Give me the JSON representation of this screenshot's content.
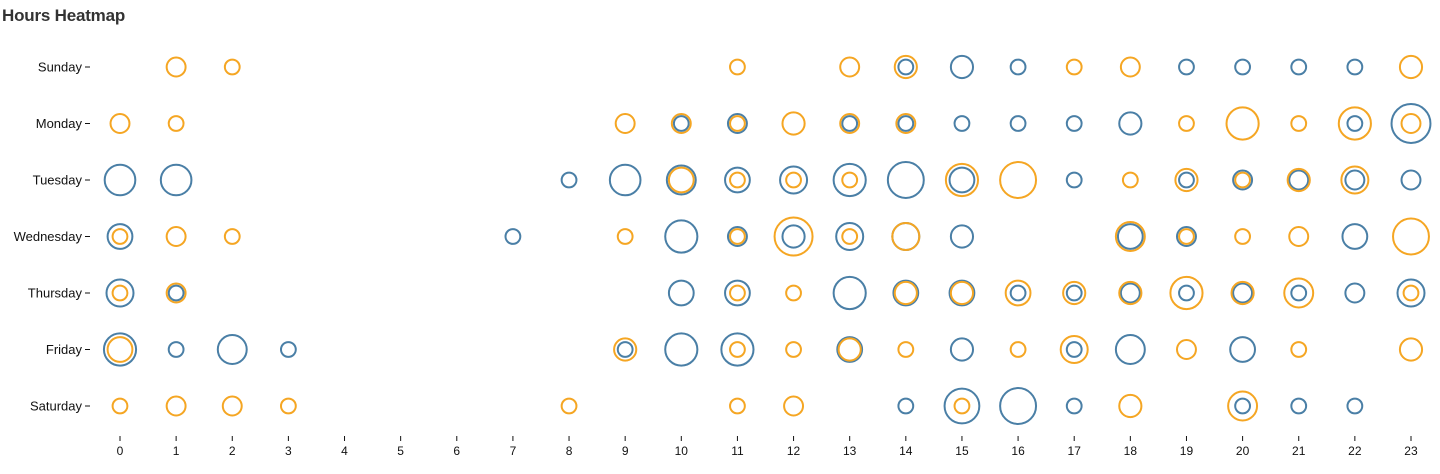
{
  "chart_data": {
    "type": "scatter",
    "title": "Hours Heatmap",
    "xlabel": "",
    "ylabel": "",
    "x_ticks": [
      "0",
      "1",
      "2",
      "3",
      "4",
      "5",
      "6",
      "7",
      "8",
      "9",
      "10",
      "11",
      "12",
      "13",
      "14",
      "15",
      "16",
      "17",
      "18",
      "19",
      "20",
      "21",
      "22",
      "23"
    ],
    "days": [
      "Sunday",
      "Monday",
      "Tuesday",
      "Wednesday",
      "Thursday",
      "Friday",
      "Saturday"
    ],
    "size_encoding": "circle radius proportional to count",
    "series": [
      {
        "name": "blue",
        "color": "#4a7fa6",
        "points": [
          {
            "day": "Sunday",
            "hour": 14,
            "value": 2
          },
          {
            "day": "Sunday",
            "hour": 15,
            "value": 4
          },
          {
            "day": "Sunday",
            "hour": 16,
            "value": 2
          },
          {
            "day": "Sunday",
            "hour": 19,
            "value": 2
          },
          {
            "day": "Sunday",
            "hour": 20,
            "value": 2
          },
          {
            "day": "Sunday",
            "hour": 21,
            "value": 2
          },
          {
            "day": "Sunday",
            "hour": 22,
            "value": 2
          },
          {
            "day": "Monday",
            "hour": 10,
            "value": 2
          },
          {
            "day": "Monday",
            "hour": 11,
            "value": 3
          },
          {
            "day": "Monday",
            "hour": 13,
            "value": 2
          },
          {
            "day": "Monday",
            "hour": 14,
            "value": 2
          },
          {
            "day": "Monday",
            "hour": 15,
            "value": 2
          },
          {
            "day": "Monday",
            "hour": 16,
            "value": 2
          },
          {
            "day": "Monday",
            "hour": 17,
            "value": 2
          },
          {
            "day": "Monday",
            "hour": 18,
            "value": 4
          },
          {
            "day": "Monday",
            "hour": 22,
            "value": 2
          },
          {
            "day": "Monday",
            "hour": 23,
            "value": 15
          },
          {
            "day": "Tuesday",
            "hour": 0,
            "value": 8
          },
          {
            "day": "Tuesday",
            "hour": 1,
            "value": 8
          },
          {
            "day": "Tuesday",
            "hour": 8,
            "value": 2
          },
          {
            "day": "Tuesday",
            "hour": 9,
            "value": 8
          },
          {
            "day": "Tuesday",
            "hour": 10,
            "value": 7
          },
          {
            "day": "Tuesday",
            "hour": 11,
            "value": 5
          },
          {
            "day": "Tuesday",
            "hour": 12,
            "value": 6
          },
          {
            "day": "Tuesday",
            "hour": 13,
            "value": 9
          },
          {
            "day": "Tuesday",
            "hour": 14,
            "value": 12
          },
          {
            "day": "Tuesday",
            "hour": 15,
            "value": 5
          },
          {
            "day": "Tuesday",
            "hour": 17,
            "value": 2
          },
          {
            "day": "Tuesday",
            "hour": 19,
            "value": 2
          },
          {
            "day": "Tuesday",
            "hour": 20,
            "value": 3
          },
          {
            "day": "Tuesday",
            "hour": 21,
            "value": 3
          },
          {
            "day": "Tuesday",
            "hour": 22,
            "value": 3
          },
          {
            "day": "Tuesday",
            "hour": 23,
            "value": 3
          },
          {
            "day": "Wednesday",
            "hour": 0,
            "value": 5
          },
          {
            "day": "Wednesday",
            "hour": 7,
            "value": 2
          },
          {
            "day": "Wednesday",
            "hour": 10,
            "value": 9
          },
          {
            "day": "Wednesday",
            "hour": 11,
            "value": 3
          },
          {
            "day": "Wednesday",
            "hour": 12,
            "value": 4
          },
          {
            "day": "Wednesday",
            "hour": 13,
            "value": 6
          },
          {
            "day": "Wednesday",
            "hour": 14,
            "value": 6
          },
          {
            "day": "Wednesday",
            "hour": 15,
            "value": 4
          },
          {
            "day": "Wednesday",
            "hour": 18,
            "value": 5
          },
          {
            "day": "Wednesday",
            "hour": 19,
            "value": 3
          },
          {
            "day": "Wednesday",
            "hour": 22,
            "value": 5
          },
          {
            "day": "Thursday",
            "hour": 0,
            "value": 6
          },
          {
            "day": "Thursday",
            "hour": 1,
            "value": 2
          },
          {
            "day": "Thursday",
            "hour": 10,
            "value": 5
          },
          {
            "day": "Thursday",
            "hour": 11,
            "value": 5
          },
          {
            "day": "Thursday",
            "hour": 13,
            "value": 9
          },
          {
            "day": "Thursday",
            "hour": 14,
            "value": 5
          },
          {
            "day": "Thursday",
            "hour": 15,
            "value": 5
          },
          {
            "day": "Thursday",
            "hour": 16,
            "value": 2
          },
          {
            "day": "Thursday",
            "hour": 17,
            "value": 2
          },
          {
            "day": "Thursday",
            "hour": 18,
            "value": 3
          },
          {
            "day": "Thursday",
            "hour": 19,
            "value": 2
          },
          {
            "day": "Thursday",
            "hour": 20,
            "value": 3
          },
          {
            "day": "Thursday",
            "hour": 21,
            "value": 2
          },
          {
            "day": "Thursday",
            "hour": 22,
            "value": 3
          },
          {
            "day": "Thursday",
            "hour": 23,
            "value": 6
          },
          {
            "day": "Friday",
            "hour": 0,
            "value": 9
          },
          {
            "day": "Friday",
            "hour": 1,
            "value": 2
          },
          {
            "day": "Friday",
            "hour": 2,
            "value": 7
          },
          {
            "day": "Friday",
            "hour": 3,
            "value": 2
          },
          {
            "day": "Friday",
            "hour": 9,
            "value": 2
          },
          {
            "day": "Friday",
            "hour": 10,
            "value": 9
          },
          {
            "day": "Friday",
            "hour": 11,
            "value": 9
          },
          {
            "day": "Friday",
            "hour": 13,
            "value": 5
          },
          {
            "day": "Friday",
            "hour": 15,
            "value": 4
          },
          {
            "day": "Friday",
            "hour": 17,
            "value": 2
          },
          {
            "day": "Friday",
            "hour": 18,
            "value": 7
          },
          {
            "day": "Friday",
            "hour": 20,
            "value": 5
          },
          {
            "day": "Saturday",
            "hour": 14,
            "value": 2
          },
          {
            "day": "Saturday",
            "hour": 15,
            "value": 11
          },
          {
            "day": "Saturday",
            "hour": 16,
            "value": 12
          },
          {
            "day": "Saturday",
            "hour": 17,
            "value": 2
          },
          {
            "day": "Saturday",
            "hour": 20,
            "value": 2
          },
          {
            "day": "Saturday",
            "hour": 21,
            "value": 2
          },
          {
            "day": "Saturday",
            "hour": 22,
            "value": 2
          }
        ]
      },
      {
        "name": "orange",
        "color": "#f5a623",
        "points": [
          {
            "day": "Sunday",
            "hour": 1,
            "value": 3
          },
          {
            "day": "Sunday",
            "hour": 2,
            "value": 2
          },
          {
            "day": "Sunday",
            "hour": 11,
            "value": 2
          },
          {
            "day": "Sunday",
            "hour": 13,
            "value": 3
          },
          {
            "day": "Sunday",
            "hour": 14,
            "value": 4
          },
          {
            "day": "Sunday",
            "hour": 17,
            "value": 2
          },
          {
            "day": "Sunday",
            "hour": 18,
            "value": 3
          },
          {
            "day": "Sunday",
            "hour": 23,
            "value": 4
          },
          {
            "day": "Monday",
            "hour": 0,
            "value": 3
          },
          {
            "day": "Monday",
            "hour": 1,
            "value": 2
          },
          {
            "day": "Monday",
            "hour": 9,
            "value": 3
          },
          {
            "day": "Monday",
            "hour": 10,
            "value": 3
          },
          {
            "day": "Monday",
            "hour": 11,
            "value": 2
          },
          {
            "day": "Monday",
            "hour": 12,
            "value": 4
          },
          {
            "day": "Monday",
            "hour": 13,
            "value": 3
          },
          {
            "day": "Monday",
            "hour": 14,
            "value": 3
          },
          {
            "day": "Monday",
            "hour": 19,
            "value": 2
          },
          {
            "day": "Monday",
            "hour": 20,
            "value": 9
          },
          {
            "day": "Monday",
            "hour": 21,
            "value": 2
          },
          {
            "day": "Monday",
            "hour": 22,
            "value": 9
          },
          {
            "day": "Monday",
            "hour": 23,
            "value": 3
          },
          {
            "day": "Tuesday",
            "hour": 10,
            "value": 5
          },
          {
            "day": "Tuesday",
            "hour": 11,
            "value": 2
          },
          {
            "day": "Tuesday",
            "hour": 12,
            "value": 2
          },
          {
            "day": "Tuesday",
            "hour": 13,
            "value": 2
          },
          {
            "day": "Tuesday",
            "hour": 15,
            "value": 9
          },
          {
            "day": "Tuesday",
            "hour": 16,
            "value": 12
          },
          {
            "day": "Tuesday",
            "hour": 18,
            "value": 2
          },
          {
            "day": "Tuesday",
            "hour": 19,
            "value": 4
          },
          {
            "day": "Tuesday",
            "hour": 20,
            "value": 2
          },
          {
            "day": "Tuesday",
            "hour": 21,
            "value": 4
          },
          {
            "day": "Tuesday",
            "hour": 22,
            "value": 6
          },
          {
            "day": "Wednesday",
            "hour": 0,
            "value": 2
          },
          {
            "day": "Wednesday",
            "hour": 1,
            "value": 3
          },
          {
            "day": "Wednesday",
            "hour": 2,
            "value": 2
          },
          {
            "day": "Wednesday",
            "hour": 9,
            "value": 2
          },
          {
            "day": "Wednesday",
            "hour": 11,
            "value": 2
          },
          {
            "day": "Wednesday",
            "hour": 12,
            "value": 14
          },
          {
            "day": "Wednesday",
            "hour": 13,
            "value": 2
          },
          {
            "day": "Wednesday",
            "hour": 14,
            "value": 6
          },
          {
            "day": "Wednesday",
            "hour": 18,
            "value": 7
          },
          {
            "day": "Wednesday",
            "hour": 19,
            "value": 2
          },
          {
            "day": "Wednesday",
            "hour": 20,
            "value": 2
          },
          {
            "day": "Wednesday",
            "hour": 21,
            "value": 3
          },
          {
            "day": "Wednesday",
            "hour": 23,
            "value": 12
          },
          {
            "day": "Thursday",
            "hour": 0,
            "value": 2
          },
          {
            "day": "Thursday",
            "hour": 1,
            "value": 3
          },
          {
            "day": "Thursday",
            "hour": 11,
            "value": 2
          },
          {
            "day": "Thursday",
            "hour": 12,
            "value": 2
          },
          {
            "day": "Thursday",
            "hour": 14,
            "value": 4
          },
          {
            "day": "Thursday",
            "hour": 15,
            "value": 4
          },
          {
            "day": "Thursday",
            "hour": 16,
            "value": 5
          },
          {
            "day": "Thursday",
            "hour": 17,
            "value": 4
          },
          {
            "day": "Thursday",
            "hour": 18,
            "value": 4
          },
          {
            "day": "Thursday",
            "hour": 19,
            "value": 9
          },
          {
            "day": "Thursday",
            "hour": 20,
            "value": 4
          },
          {
            "day": "Thursday",
            "hour": 21,
            "value": 7
          },
          {
            "day": "Thursday",
            "hour": 23,
            "value": 2
          },
          {
            "day": "Friday",
            "hour": 0,
            "value": 5
          },
          {
            "day": "Friday",
            "hour": 9,
            "value": 4
          },
          {
            "day": "Friday",
            "hour": 11,
            "value": 2
          },
          {
            "day": "Friday",
            "hour": 12,
            "value": 2
          },
          {
            "day": "Friday",
            "hour": 13,
            "value": 4
          },
          {
            "day": "Friday",
            "hour": 14,
            "value": 2
          },
          {
            "day": "Friday",
            "hour": 16,
            "value": 2
          },
          {
            "day": "Friday",
            "hour": 17,
            "value": 6
          },
          {
            "day": "Friday",
            "hour": 19,
            "value": 3
          },
          {
            "day": "Friday",
            "hour": 21,
            "value": 2
          },
          {
            "day": "Friday",
            "hour": 23,
            "value": 4
          },
          {
            "day": "Saturday",
            "hour": 0,
            "value": 2
          },
          {
            "day": "Saturday",
            "hour": 1,
            "value": 3
          },
          {
            "day": "Saturday",
            "hour": 2,
            "value": 3
          },
          {
            "day": "Saturday",
            "hour": 3,
            "value": 2
          },
          {
            "day": "Saturday",
            "hour": 8,
            "value": 2
          },
          {
            "day": "Saturday",
            "hour": 11,
            "value": 2
          },
          {
            "day": "Saturday",
            "hour": 12,
            "value": 3
          },
          {
            "day": "Saturday",
            "hour": 15,
            "value": 2
          },
          {
            "day": "Saturday",
            "hour": 18,
            "value": 4
          },
          {
            "day": "Saturday",
            "hour": 20,
            "value": 7
          }
        ]
      }
    ]
  }
}
